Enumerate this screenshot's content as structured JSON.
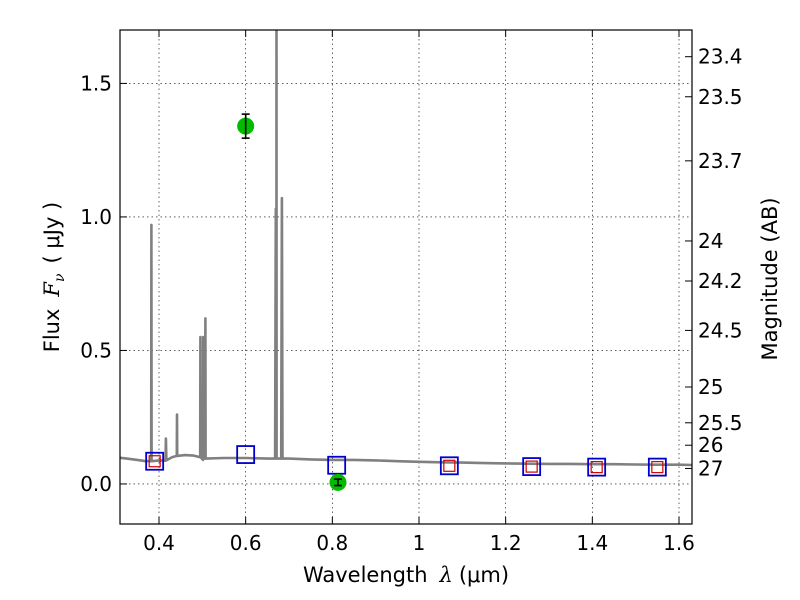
{
  "chart_data": {
    "type": "line",
    "xlabel_prefix": "Wavelength",
    "xlabel_symbol": "λ",
    "xlabel_unit": "(μm)",
    "ylabel_prefix": "Flux",
    "ylabel_symbol": "F",
    "ylabel_subscript": "ν",
    "ylabel_unit": "( μJy )",
    "y2label": "Magnitude (AB)",
    "xlim": [
      0.31,
      1.63
    ],
    "ylim": [
      -0.15,
      1.7
    ],
    "grid": true,
    "x_ticks": [
      {
        "value": 0.4,
        "label": "0.4"
      },
      {
        "value": 0.6,
        "label": "0.6"
      },
      {
        "value": 0.8,
        "label": "0.8"
      },
      {
        "value": 1.0,
        "label": "1"
      },
      {
        "value": 1.2,
        "label": "1.2"
      },
      {
        "value": 1.4,
        "label": "1.4"
      },
      {
        "value": 1.6,
        "label": "1.6"
      }
    ],
    "y_ticks": [
      {
        "value": 0.0,
        "label": "0.0"
      },
      {
        "value": 0.5,
        "label": "0.5"
      },
      {
        "value": 1.0,
        "label": "1.0"
      },
      {
        "value": 1.5,
        "label": "1.5"
      }
    ],
    "right_ticks": [
      {
        "flux": 1.6,
        "label": "23.4"
      },
      {
        "flux": 1.45,
        "label": "23.5"
      },
      {
        "flux": 1.21,
        "label": "23.7"
      },
      {
        "flux": 0.91,
        "label": "24"
      },
      {
        "flux": 0.76,
        "label": "24.2"
      },
      {
        "flux": 0.575,
        "label": "24.5"
      },
      {
        "flux": 0.363,
        "label": "25"
      },
      {
        "flux": 0.229,
        "label": "25.5"
      },
      {
        "flux": 0.145,
        "label": "26"
      },
      {
        "flux": 0.058,
        "label": "27"
      }
    ],
    "colors": {
      "spectrum": "#808080",
      "model_box": "#0000cc",
      "model_inner": "#cc0000",
      "observed": "#00bb00",
      "errorbar": "#000000"
    },
    "series": [
      {
        "name": "model spectrum",
        "type": "line",
        "points": [
          [
            0.31,
            0.098
          ],
          [
            0.33,
            0.094
          ],
          [
            0.35,
            0.09
          ],
          [
            0.37,
            0.085
          ],
          [
            0.382,
            0.085
          ],
          [
            0.3825,
            0.97
          ],
          [
            0.383,
            0.085
          ],
          [
            0.4,
            0.088
          ],
          [
            0.415,
            0.087
          ],
          [
            0.416,
            0.17
          ],
          [
            0.417,
            0.088
          ],
          [
            0.43,
            0.1
          ],
          [
            0.441,
            0.105
          ],
          [
            0.4415,
            0.26
          ],
          [
            0.442,
            0.105
          ],
          [
            0.46,
            0.108
          ],
          [
            0.48,
            0.106
          ],
          [
            0.495,
            0.1
          ],
          [
            0.4955,
            0.55
          ],
          [
            0.496,
            0.1
          ],
          [
            0.5015,
            0.09
          ],
          [
            0.502,
            0.55
          ],
          [
            0.5025,
            0.095
          ],
          [
            0.5065,
            0.095
          ],
          [
            0.507,
            0.62
          ],
          [
            0.5075,
            0.095
          ],
          [
            0.55,
            0.097
          ],
          [
            0.6,
            0.097
          ],
          [
            0.65,
            0.095
          ],
          [
            0.668,
            0.095
          ],
          [
            0.6695,
            1.03
          ],
          [
            0.671,
            0.095
          ],
          [
            0.671,
            0.095
          ],
          [
            0.6712,
            1.72
          ],
          [
            0.6714,
            0.095
          ],
          [
            0.675,
            0.095
          ],
          [
            0.682,
            0.095
          ],
          [
            0.6835,
            1.07
          ],
          [
            0.685,
            0.095
          ],
          [
            0.7,
            0.095
          ],
          [
            0.75,
            0.092
          ],
          [
            0.8,
            0.09
          ],
          [
            0.85,
            0.09
          ],
          [
            0.9,
            0.088
          ],
          [
            0.95,
            0.085
          ],
          [
            1.0,
            0.083
          ],
          [
            1.05,
            0.081
          ],
          [
            1.1,
            0.08
          ],
          [
            1.15,
            0.078
          ],
          [
            1.2,
            0.077
          ],
          [
            1.25,
            0.076
          ],
          [
            1.3,
            0.075
          ],
          [
            1.35,
            0.075
          ],
          [
            1.4,
            0.074
          ],
          [
            1.45,
            0.074
          ],
          [
            1.5,
            0.073
          ],
          [
            1.55,
            0.072
          ],
          [
            1.6,
            0.072
          ],
          [
            1.63,
            0.071
          ]
        ]
      },
      {
        "name": "model photometry",
        "type": "square",
        "points": [
          [
            0.39,
            0.085
          ],
          [
            0.6,
            0.11
          ],
          [
            0.81,
            0.07
          ],
          [
            1.07,
            0.068
          ],
          [
            1.26,
            0.065
          ],
          [
            1.41,
            0.063
          ],
          [
            1.55,
            0.063
          ]
        ]
      },
      {
        "name": "synthetic photometry",
        "type": "square-small",
        "points": [
          [
            0.39,
            0.085
          ],
          [
            1.07,
            0.068
          ],
          [
            1.26,
            0.065
          ],
          [
            1.41,
            0.063
          ],
          [
            1.55,
            0.063
          ]
        ]
      },
      {
        "name": "observed photometry",
        "type": "errorbar",
        "points": [
          {
            "x": 0.6,
            "y": 1.34,
            "err": 0.045
          },
          {
            "x": 0.813,
            "y": 0.006,
            "err": 0.012
          }
        ]
      }
    ]
  }
}
